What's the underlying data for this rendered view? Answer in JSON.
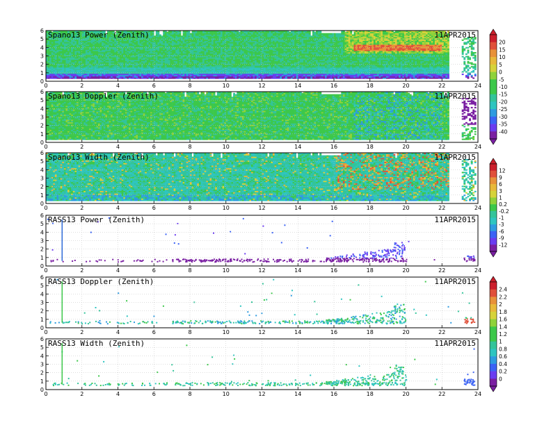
{
  "chart_data": {
    "type": "heatmap",
    "x_ticks": [
      "0",
      "2",
      "4",
      "6",
      "8",
      "10",
      "12",
      "14",
      "16",
      "18",
      "20",
      "22",
      "24"
    ],
    "y_ticks": [
      "0",
      "1",
      "2",
      "3",
      "4",
      "5",
      "6"
    ],
    "xlim": [
      0,
      24
    ],
    "ylim": [
      0,
      6
    ],
    "grid": true,
    "date": "11APR2015",
    "panels": [
      {
        "title": "Spano13 Power (Zenith)",
        "date": "11APR2015",
        "colorbar": 0,
        "field": "power"
      },
      {
        "title": "Spano13 Doppler (Zenith)",
        "date": "11APR2015",
        "colorbar": 0,
        "field": "doppler"
      },
      {
        "title": "Spano13 Width (Zenith)",
        "date": "11APR2015",
        "colorbar": 1,
        "field": "width"
      },
      {
        "title": "RASS13 Power (Zenith)",
        "date": "11APR2015",
        "colorbar": 1,
        "field": "rass_power"
      },
      {
        "title": "RASS13 Doppler (Zenith)",
        "date": "11APR2015",
        "colorbar": 2,
        "field": "rass_doppler"
      },
      {
        "title": "RASS13 Width (Zenith)",
        "date": "11APR2015",
        "colorbar": 2,
        "field": "rass_width"
      }
    ],
    "colorbars": [
      {
        "labels": [
          "20",
          "15",
          "10",
          "5",
          "0",
          "-5",
          "-10",
          "-15",
          "-20",
          "-25",
          "-30",
          "-35",
          "-40"
        ]
      },
      {
        "labels": [
          "12",
          "9",
          "6",
          "3",
          "1",
          "0.2",
          "-0.2",
          "-1",
          "-3",
          "-6",
          "-9",
          "-12"
        ]
      },
      {
        "labels": [
          "2.4",
          "2.2",
          "2",
          "1.8",
          "1.6",
          "1.4",
          "1.2",
          "1",
          "0.8",
          "0.6",
          "0.4",
          "0.2",
          "0"
        ]
      }
    ],
    "palette": [
      "#7a1fa2",
      "#6a3cf0",
      "#3b63f5",
      "#2e9be0",
      "#2ec5c0",
      "#33c49a",
      "#3cc84a",
      "#8fd23a",
      "#d6d33a",
      "#e8b93a",
      "#e8923a",
      "#e0503a",
      "#cc1f2c"
    ]
  }
}
